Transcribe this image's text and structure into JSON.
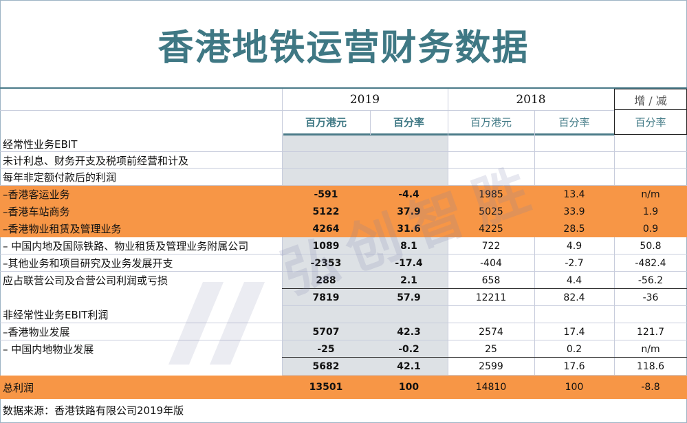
{
  "title": "香港地铁运营财务数据",
  "header": {
    "year_2019": "2019",
    "year_2018": "2018",
    "change": "增 / 减",
    "sub": [
      "百万港元",
      "百分率",
      "百万港元",
      "百分率",
      "百分率"
    ]
  },
  "rows": [
    {
      "label": "经常性业务EBIT",
      "v": [
        "",
        "",
        "",
        "",
        ""
      ]
    },
    {
      "label": "未计利息、财务开支及税项前经营和计及",
      "v": [
        "",
        "",
        "",
        "",
        ""
      ]
    },
    {
      "label": "每年非定额付款后的利润",
      "v": [
        "",
        "",
        "",
        "",
        ""
      ]
    },
    {
      "label": "–香港客运业务",
      "v": [
        "-591",
        "-4.4",
        "1985",
        "13.4",
        "n/m"
      ]
    },
    {
      "label": "–香港车站商务",
      "v": [
        "5122",
        "37.9",
        "5025",
        "33.9",
        "1.9"
      ]
    },
    {
      "label": "–香港物业租赁及管理业务",
      "v": [
        "4264",
        "31.6",
        "4225",
        "28.5",
        "0.9"
      ]
    },
    {
      "label": "– 中国内地及国际铁路、物业租赁及管理业务附属公司",
      "v": [
        "1089",
        "8.1",
        "722",
        "4.9",
        "50.8"
      ]
    },
    {
      "label": "–其他业务和项目研究及业务发展开支",
      "v": [
        "-2353",
        "-17.4",
        "-404",
        "-2.7",
        "-482.4"
      ]
    },
    {
      "label": "应占联营公司及合营公司利润或亏损",
      "v": [
        "288",
        "2.1",
        "658",
        "4.4",
        "-56.2"
      ]
    },
    {
      "label": "",
      "v": [
        "7819",
        "57.9",
        "12211",
        "82.4",
        "-36"
      ]
    },
    {
      "label": "非经常性业务EBIT利润",
      "v": [
        "",
        "",
        "",
        "",
        ""
      ]
    },
    {
      "label": "–香港物业发展",
      "v": [
        "5707",
        "42.3",
        "2574",
        "17.4",
        "121.7"
      ]
    },
    {
      "label": "– 中国内地物业发展",
      "v": [
        "-25",
        "-0.2",
        "25",
        "0.2",
        "n/m"
      ]
    },
    {
      "label": "",
      "v": [
        "5682",
        "42.1",
        "2599",
        "17.6",
        "118.6"
      ]
    },
    {
      "label": "总利润",
      "v": [
        "13501",
        "100",
        "14810",
        "100",
        "-8.8"
      ]
    }
  ],
  "source": "数据来源：香港铁路有限公司2019年版",
  "watermark": "弘创智胜",
  "colors": {
    "orange": "#f79646",
    "title": "#3f7884",
    "grey": "#dde1e5"
  }
}
